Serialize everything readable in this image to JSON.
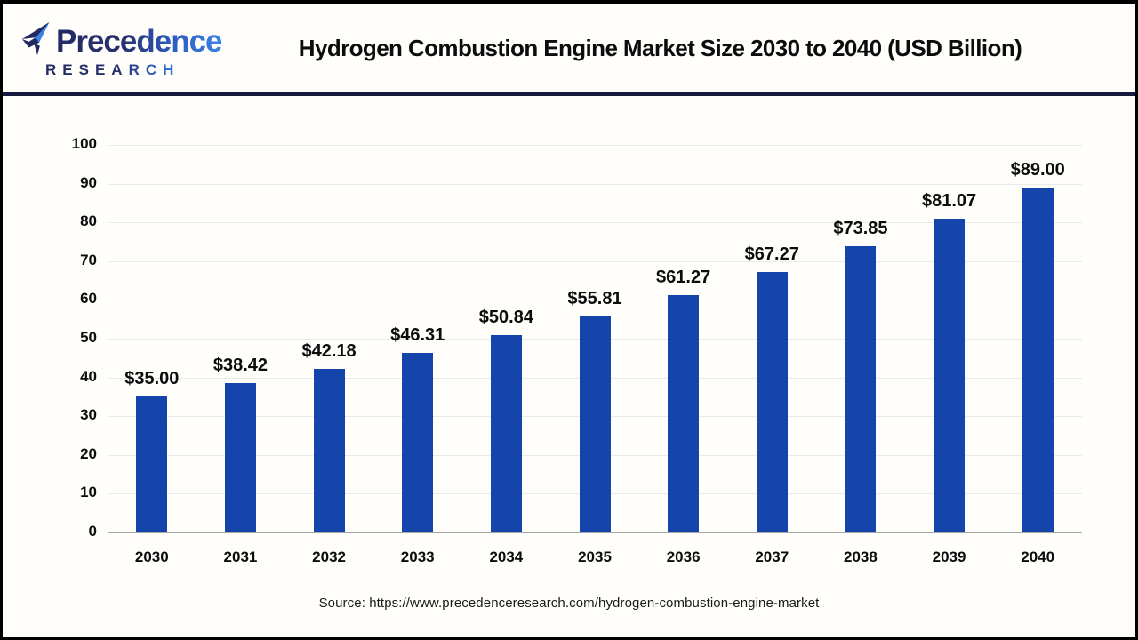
{
  "header": {
    "brand_name": "Precedence",
    "brand_sub": "RESEARCH",
    "brand_navy": "#232a63",
    "brand_blue": "#3b82e8",
    "title": "Hydrogen Combustion Engine Market Size 2030 to 2040 (USD Billion)"
  },
  "chart_data": {
    "type": "bar",
    "title": "Hydrogen Combustion Engine Market Size 2030 to 2040 (USD Billion)",
    "categories": [
      "2030",
      "2031",
      "2032",
      "2033",
      "2034",
      "2035",
      "2036",
      "2037",
      "2038",
      "2039",
      "2040"
    ],
    "values": [
      35.0,
      38.42,
      42.18,
      46.31,
      50.84,
      55.81,
      61.27,
      67.27,
      73.85,
      81.07,
      89.0
    ],
    "data_labels": [
      "$35.00",
      "$38.42",
      "$42.18",
      "$46.31",
      "$50.84",
      "$55.81",
      "$61.27",
      "$67.27",
      "$73.85",
      "$81.07",
      "$89.00"
    ],
    "xlabel": "",
    "ylabel": "",
    "ylim": [
      0,
      100
    ],
    "ytick_step": 10,
    "grid": "horizontal",
    "legend": "none",
    "bar_color": "#1544ab",
    "gridline_color": "#eaeaea",
    "axis_line_color": "#a6a6a6",
    "label_color": "#0c0c0c"
  },
  "footer": {
    "source": "Source: https://www.precedenceresearch.com/hydrogen-combustion-engine-market"
  }
}
